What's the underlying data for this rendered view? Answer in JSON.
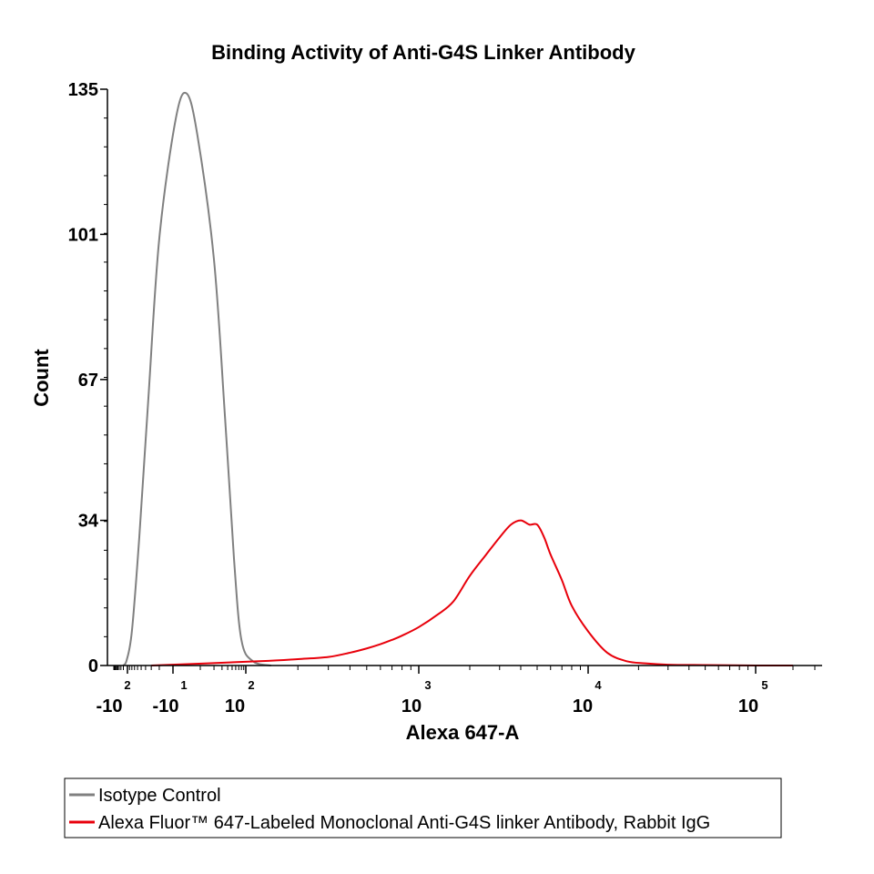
{
  "chart_data": {
    "type": "line",
    "title": "Binding Activity of Anti-G4S Linker Antibody",
    "xlabel": "Alexa 647-A",
    "ylabel": "Count",
    "x_scale": "biexponential",
    "ylim": [
      0,
      135
    ],
    "y_ticks": [
      0,
      34,
      67,
      101,
      135
    ],
    "x_ticks": [
      {
        "value": -100,
        "base": "-10",
        "exp": "2"
      },
      {
        "value": -10,
        "base": "-10",
        "exp": "1"
      },
      {
        "value": 100,
        "base": "10",
        "exp": "2"
      },
      {
        "value": 1000,
        "base": "10",
        "exp": "3"
      },
      {
        "value": 10000,
        "base": "10",
        "exp": "4"
      },
      {
        "value": 100000,
        "base": "10",
        "exp": "5"
      }
    ],
    "legend_position": "bottom",
    "series": [
      {
        "name": "Isotype Control",
        "color": "#808080",
        "x": [
          -200,
          -120,
          -80,
          -55,
          -35,
          -20,
          -8,
          0,
          8,
          20,
          35,
          55,
          80,
          110,
          140
        ],
        "y": [
          0,
          1,
          8,
          30,
          62,
          100,
          128,
          134,
          124,
          95,
          58,
          25,
          6,
          1,
          0
        ]
      },
      {
        "name": "Alexa Fluor™ 647-Labeled Monoclonal Anti-G4S linker Antibody, Rabbit IgG",
        "color": "#e8000b",
        "x": [
          -30,
          120,
          200,
          300,
          400,
          500,
          600,
          700,
          800,
          1000,
          1300,
          1600,
          2000,
          2500,
          3000,
          3500,
          4000,
          4500,
          5000,
          5500,
          6000,
          7000,
          8000,
          10000,
          13000,
          17000,
          22000,
          30000,
          50000,
          100000,
          200000
        ],
        "y": [
          0,
          1,
          1.5,
          2,
          3,
          4,
          5,
          6,
          7,
          9,
          12,
          15,
          21,
          26,
          30,
          33,
          34,
          33,
          33,
          30,
          26,
          20,
          14,
          8,
          3,
          1,
          0.5,
          0.2,
          0.1,
          0,
          0
        ]
      }
    ]
  }
}
